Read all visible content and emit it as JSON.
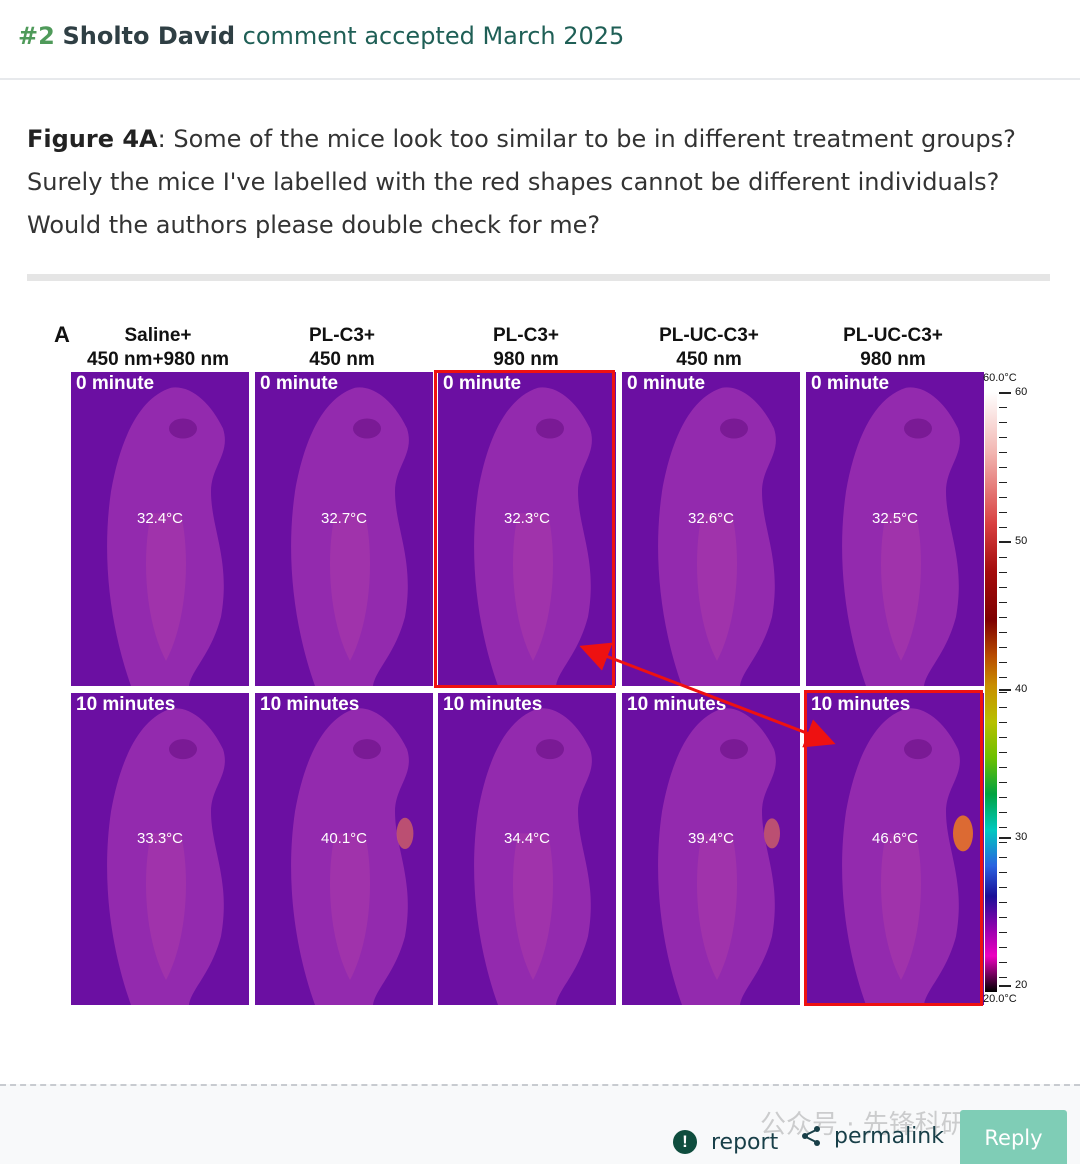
{
  "header": {
    "number": "#2",
    "author": "Sholto David",
    "status": "comment accepted March 2025"
  },
  "comment": {
    "figure_ref": "Figure 4A",
    "text": ": Some of the mice look too similar to be in different treatment groups? Surely the mice I've labelled with the red shapes cannot be different individuals? Would the authors please double check for me?"
  },
  "figure": {
    "panel_letter": "A",
    "columns": [
      {
        "line1": "Saline+",
        "line2": "450 nm+980 nm"
      },
      {
        "line1": "PL-C3+",
        "line2": "450 nm"
      },
      {
        "line1": "PL-C3+",
        "line2": "980 nm"
      },
      {
        "line1": "PL-UC-C3+",
        "line2": "450 nm"
      },
      {
        "line1": "PL-UC-C3+",
        "line2": "980 nm"
      }
    ],
    "rows": [
      {
        "time": "0 minute",
        "temps": [
          "32.4°C",
          "32.7°C",
          "32.3°C",
          "32.6°C",
          "32.5°C"
        ]
      },
      {
        "time": "10 minutes",
        "temps": [
          "33.3°C",
          "40.1°C",
          "34.4°C",
          "39.4°C",
          "46.6°C"
        ]
      }
    ],
    "scale": {
      "top_label": "60.0°C",
      "bottom_label": "20.0°C",
      "ticks": [
        "60",
        "50",
        "40",
        "30",
        "20"
      ]
    },
    "colors": {
      "highlight": "#ee1111",
      "background": "#6b0fa2"
    }
  },
  "footer": {
    "report_label": "report",
    "report_icon": "alert-circle-icon",
    "permalink_label": "permalink",
    "permalink_icon": "share-icon",
    "reply_label": "Reply",
    "watermark": "公众号 · 先锋科研"
  }
}
